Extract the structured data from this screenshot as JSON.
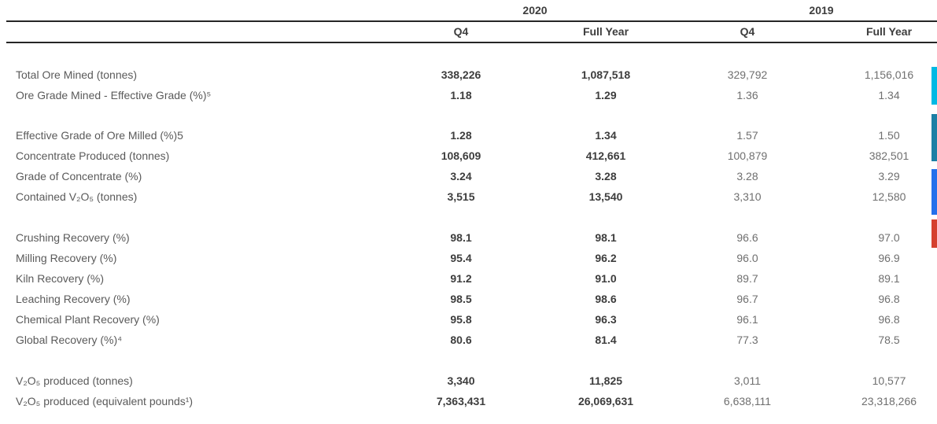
{
  "header": {
    "year_groups": [
      {
        "label": "2020"
      },
      {
        "label": "2019"
      }
    ],
    "columns": [
      "Q4",
      "Full Year",
      "Q4",
      "Full Year"
    ]
  },
  "table": {
    "groups": [
      {
        "rows": [
          {
            "label": "Total Ore Mined (tonnes)",
            "values": [
              "338,226",
              "1,087,518",
              "329,792",
              "1,156,016"
            ]
          },
          {
            "label": "Ore Grade Mined - Effective Grade (%)⁵",
            "values": [
              "1.18",
              "1.29",
              "1.36",
              "1.34"
            ]
          }
        ]
      },
      {
        "rows": [
          {
            "label": "Effective Grade of Ore Milled (%)5",
            "values": [
              "1.28",
              "1.34",
              "1.57",
              "1.50"
            ]
          },
          {
            "label": "Concentrate Produced (tonnes)",
            "values": [
              "108,609",
              "412,661",
              "100,879",
              "382,501"
            ]
          },
          {
            "label": "Grade of Concentrate (%)",
            "values": [
              "3.24",
              "3.28",
              "3.28",
              "3.29"
            ]
          },
          {
            "label": "Contained V₂O₅ (tonnes)",
            "values": [
              "3,515",
              "13,540",
              "3,310",
              "12,580"
            ]
          }
        ]
      },
      {
        "rows": [
          {
            "label": "Crushing Recovery (%)",
            "values": [
              "98.1",
              "98.1",
              "96.6",
              "97.0"
            ]
          },
          {
            "label": "Milling Recovery (%)",
            "values": [
              "95.4",
              "96.2",
              "96.0",
              "96.9"
            ]
          },
          {
            "label": "Kiln Recovery (%)",
            "values": [
              "91.2",
              "91.0",
              "89.7",
              "89.1"
            ]
          },
          {
            "label": "Leaching Recovery (%)",
            "values": [
              "98.5",
              "98.6",
              "96.7",
              "96.8"
            ]
          },
          {
            "label": "Chemical Plant Recovery (%)",
            "values": [
              "95.8",
              "96.3",
              "96.1",
              "96.8"
            ]
          },
          {
            "label": "Global Recovery (%)⁴",
            "values": [
              "80.6",
              "81.4",
              "77.3",
              "78.5"
            ]
          }
        ]
      },
      {
        "rows": [
          {
            "label": "V₂O₅ produced (tonnes)",
            "values": [
              "3,340",
              "11,825",
              "3,011",
              "10,577"
            ]
          },
          {
            "label": "V₂O₅ produced (equivalent pounds¹)",
            "values": [
              "7,363,431",
              "26,069,631",
              "6,638,111",
              "23,318,266"
            ]
          }
        ]
      }
    ]
  },
  "indicators": {
    "bars": [
      {
        "name": "cyan",
        "color": "#00b9e4"
      },
      {
        "name": "teal",
        "color": "#1c7fa5"
      },
      {
        "name": "blue",
        "color": "#2470eb"
      },
      {
        "name": "red",
        "color": "#d5402e"
      }
    ]
  }
}
